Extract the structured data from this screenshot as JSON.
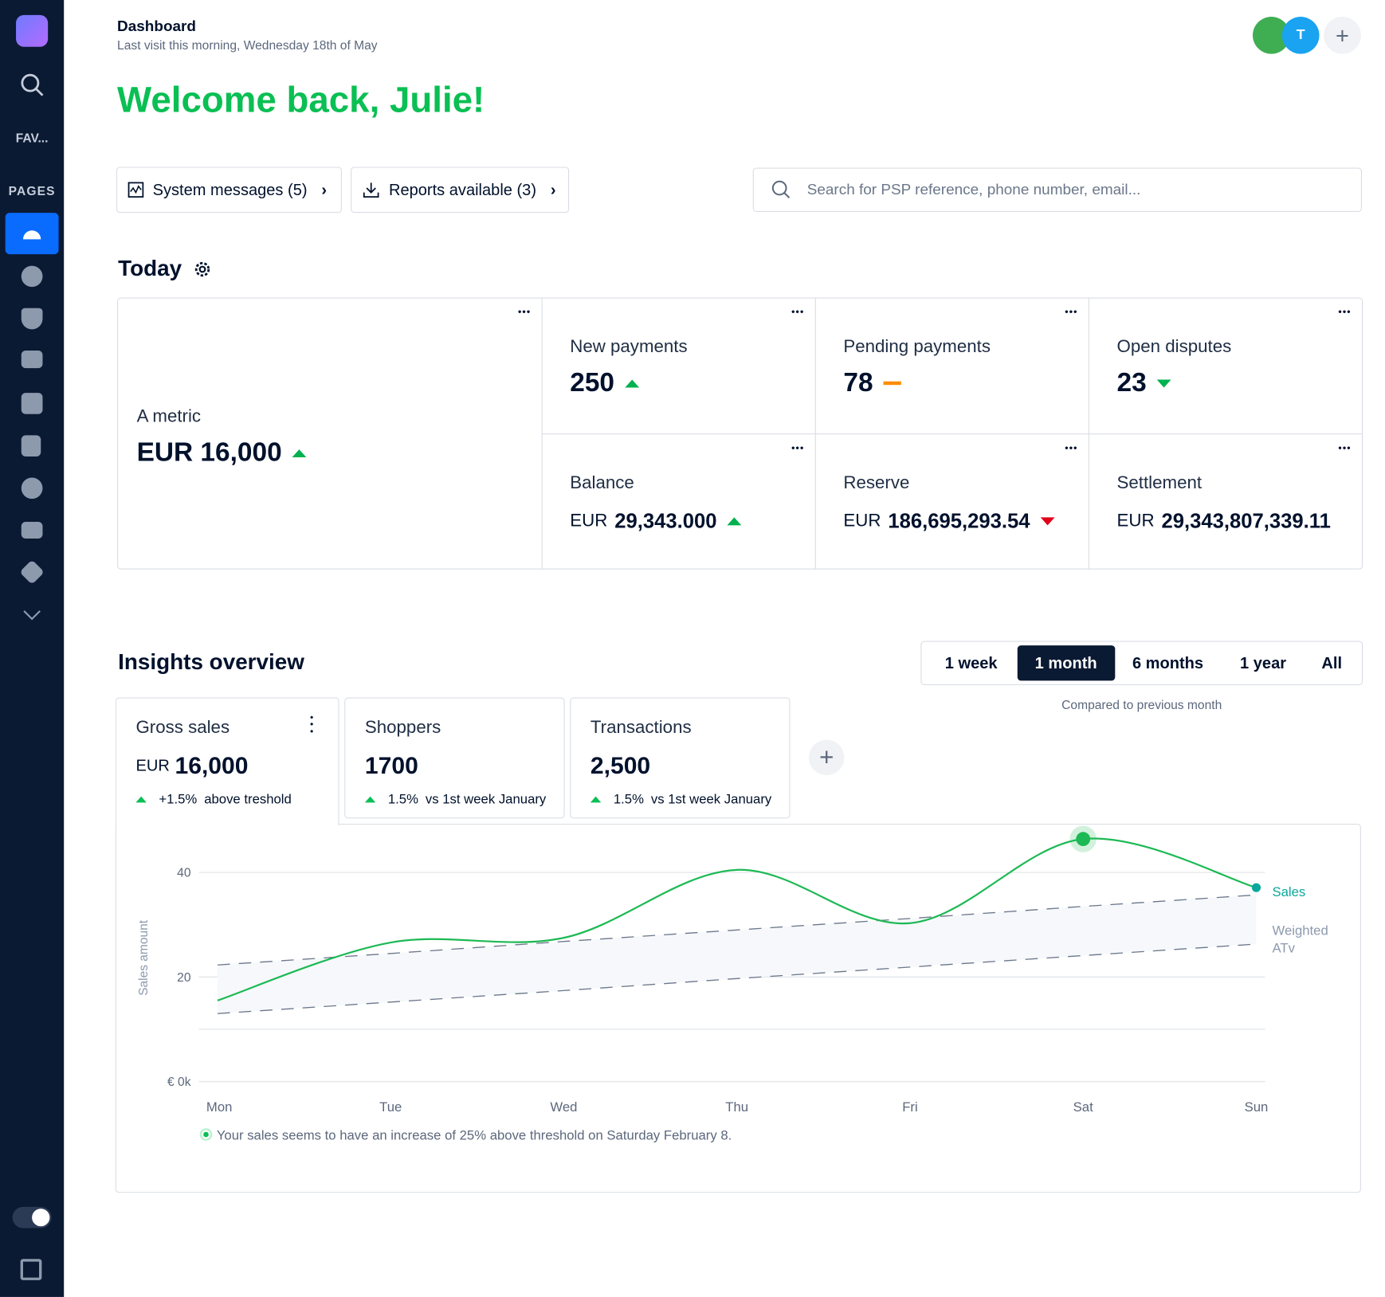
{
  "sidebar": {
    "favorites": "FAV...",
    "pages": "PAGES"
  },
  "header": {
    "title": "Dashboard",
    "subtitle": "Last visit this morning, Wednesday 18th of May",
    "avatar": "T"
  },
  "welcome": "Welcome back, Julie!",
  "buttons": [
    "System messages (5)",
    "Reports available (3)"
  ],
  "search_placeholder": "Search for PSP reference, phone number, email...",
  "today": {
    "title": "Today",
    "metrics": [
      {
        "label": "A metric",
        "value": "EUR 16,000",
        "trend": "up",
        "trend_color": "#00b14f"
      },
      {
        "label": "New payments",
        "value": "250",
        "trend": "up",
        "trend_color": "#00b14f"
      },
      {
        "label": "Pending payments",
        "value": "78",
        "trend": "flat",
        "trend_color": "#ff8c00"
      },
      {
        "label": "Open disputes",
        "value": "23",
        "trend": "down",
        "trend_color": "#00b14f"
      },
      {
        "label": "Balance",
        "currency": "EUR",
        "value": "29,343.000",
        "trend": "up",
        "trend_color": "#00b14f"
      },
      {
        "label": "Reserve",
        "currency": "EUR",
        "value": "186,695,293.54",
        "trend": "down",
        "trend_color": "#e0001a"
      },
      {
        "label": "Settlement",
        "currency": "EUR",
        "value": "29,343,807,339.11"
      }
    ]
  },
  "insights": {
    "title": "Insights overview",
    "periods": [
      "1 week",
      "1 month",
      "6 months",
      "1 year",
      "All"
    ],
    "active_period": 1,
    "comparison": "Compared to previous month",
    "cards": [
      {
        "label": "Gross sales",
        "currency": "EUR",
        "value": "16,000",
        "change": "+1.5%",
        "note": "above treshold"
      },
      {
        "label": "Shoppers",
        "value": "1700",
        "change": "1.5%",
        "note": "vs 1st week January"
      },
      {
        "label": "Transactions",
        "value": "2,500",
        "change": "1.5%",
        "note": "vs 1st week January"
      }
    ],
    "note": "Your sales seems to have an increase of 25% above threshold on Saturday February 8."
  },
  "chart_data": {
    "type": "line",
    "y_label": "Sales amount",
    "categories": [
      "Mon",
      "Tue",
      "Wed",
      "Thu",
      "Fri",
      "Sat",
      "Sun"
    ],
    "series": [
      {
        "name": "Sales",
        "color": "#1db954",
        "values": [
          15.5,
          26.6,
          27.5,
          40.5,
          30.3,
          46.4,
          37.1
        ]
      }
    ],
    "band": {
      "name": "Weighted ATv",
      "lower": [
        13.0,
        15.2,
        17.4,
        19.7,
        21.9,
        24.1,
        26.3
      ],
      "upper": [
        22.3,
        24.5,
        26.8,
        29.0,
        31.2,
        33.5,
        35.7
      ]
    },
    "highlight_index": 5,
    "ylim": [
      0,
      50
    ],
    "yticks": [
      {
        "value": 0,
        "label": "€ 0k"
      },
      {
        "value": 10,
        "label": null
      },
      20,
      40
    ],
    "grid": true
  }
}
